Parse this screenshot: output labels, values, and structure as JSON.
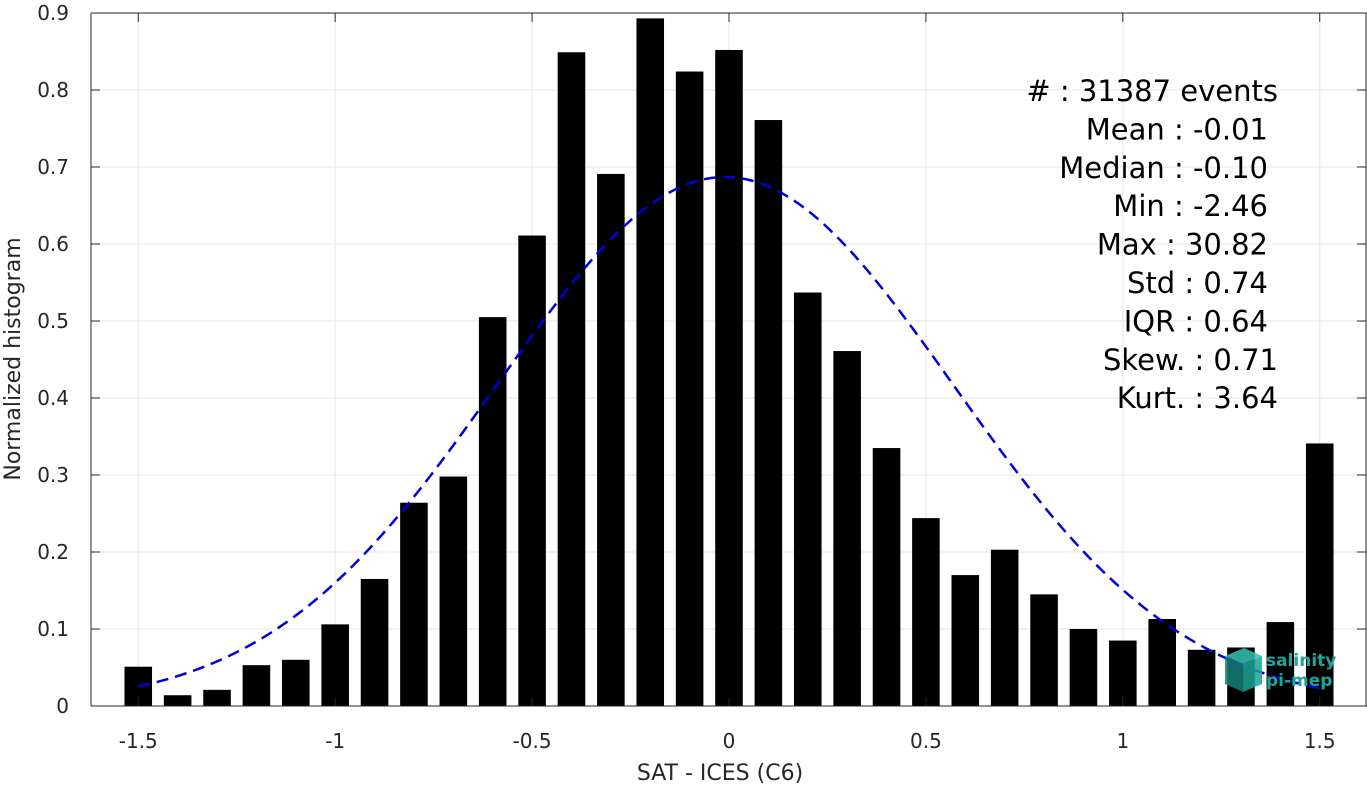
{
  "chart_data": {
    "type": "bar",
    "xlabel": "SAT - ICES (C6)",
    "ylabel": "Normalized histogram",
    "xlim": [
      -1.62,
      1.62
    ],
    "ylim": [
      0,
      0.9
    ],
    "x_ticks": [
      -1.5,
      -1,
      -0.5,
      0,
      0.5,
      1,
      1.5
    ],
    "x_tick_labels": [
      "-1.5",
      "-1",
      "-0.5",
      "0",
      "0.5",
      "1",
      "1.5"
    ],
    "y_ticks": [
      0,
      0.1,
      0.2,
      0.3,
      0.4,
      0.5,
      0.6,
      0.7,
      0.8,
      0.9
    ],
    "y_tick_labels": [
      "0",
      "0.1",
      "0.2",
      "0.3",
      "0.4",
      "0.5",
      "0.6",
      "0.7",
      "0.8",
      "0.9"
    ],
    "grid": true,
    "bar_width": 0.07,
    "bar_color": "#000000",
    "x": [
      -1.5,
      -1.4,
      -1.3,
      -1.2,
      -1.1,
      -1.0,
      -0.9,
      -0.8,
      -0.7,
      -0.6,
      -0.5,
      -0.4,
      -0.3,
      -0.2,
      -0.1,
      0.0,
      0.1,
      0.2,
      0.3,
      0.4,
      0.5,
      0.6,
      0.7,
      0.8,
      0.9,
      1.0,
      1.1,
      1.2,
      1.3,
      1.4,
      1.5
    ],
    "values": [
      0.051,
      0.014,
      0.021,
      0.053,
      0.06,
      0.106,
      0.165,
      0.264,
      0.298,
      0.505,
      0.611,
      0.849,
      0.691,
      0.893,
      0.824,
      0.852,
      0.761,
      0.537,
      0.461,
      0.335,
      0.244,
      0.17,
      0.203,
      0.145,
      0.1,
      0.085,
      0.113,
      0.073,
      0.076,
      0.109,
      0.341
    ],
    "fit_curve": {
      "type": "normal",
      "mean": -0.01,
      "std": 0.58,
      "peak": 0.687,
      "x_range": [
        -1.5,
        1.5
      ],
      "color": "#0000dd",
      "style": "dashed"
    },
    "stats": [
      {
        "label": "#  : 31387 events"
      },
      {
        "label": "Mean : -0.01"
      },
      {
        "label": "Median : -0.10"
      },
      {
        "label": "Min : -2.46"
      },
      {
        "label": "Max : 30.82"
      },
      {
        "label": "Std : 0.74"
      },
      {
        "label": "IQR : 0.64"
      },
      {
        "label": "Skew. : 0.71"
      },
      {
        "label": "Kurt. : 3.64"
      }
    ]
  },
  "logo": {
    "line1": "salinity",
    "line2": "pi-mep",
    "color": "#1aa69a"
  }
}
